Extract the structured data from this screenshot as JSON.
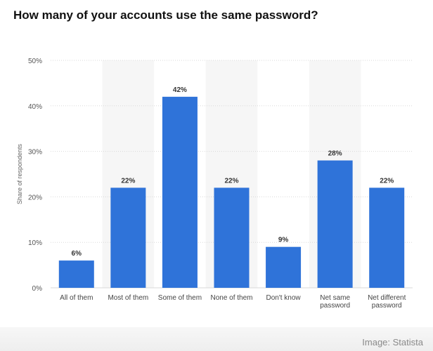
{
  "chart_data": {
    "type": "bar",
    "title": "How many of your accounts use the same password?",
    "xlabel": "",
    "ylabel": "Share of respondents",
    "categories": [
      "All of them",
      "Most of them",
      "Some of them",
      "None of them",
      "Don't know",
      "Net same password",
      "Net different password"
    ],
    "values": [
      6,
      22,
      42,
      22,
      9,
      28,
      22
    ],
    "value_labels": [
      "6%",
      "22%",
      "42%",
      "22%",
      "9%",
      "28%",
      "22%"
    ],
    "ylim": [
      0,
      50
    ],
    "yticks": [
      0,
      10,
      20,
      30,
      40,
      50
    ],
    "ytick_labels": [
      "0%",
      "10%",
      "20%",
      "30%",
      "40%",
      "50%"
    ],
    "grid": true,
    "bar_color": "#2f73d9",
    "band_color": "#f6f6f6"
  },
  "credit": "Image: Statista"
}
